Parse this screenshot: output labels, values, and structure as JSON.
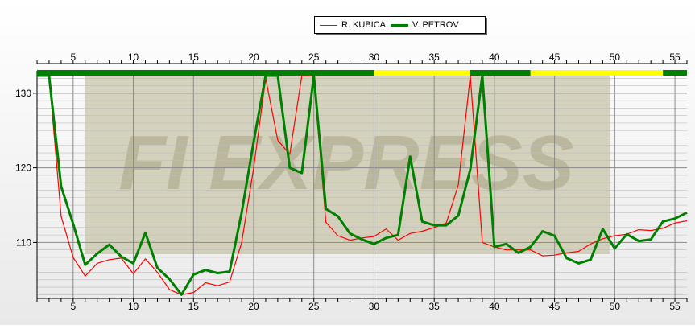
{
  "chart_data": {
    "type": "line",
    "title": "",
    "xlabel": "",
    "ylabel": "",
    "xlim": [
      2,
      56
    ],
    "ylim": [
      102.5,
      133
    ],
    "x_ticks": [
      5,
      10,
      15,
      20,
      25,
      30,
      35,
      40,
      45,
      50,
      55
    ],
    "y_ticks": [
      110,
      120,
      130
    ],
    "grid": true,
    "legend_position": "top-center",
    "series": [
      {
        "name": "R. KUBICA",
        "color": "#ff0000",
        "x": [
          2,
          3,
          4,
          5,
          6,
          7,
          8,
          9,
          10,
          11,
          12,
          13,
          14,
          15,
          16,
          17,
          18,
          19,
          20,
          21,
          22,
          23,
          24,
          25,
          26,
          27,
          28,
          29,
          30,
          31,
          32,
          33,
          34,
          35,
          36,
          37,
          38,
          39,
          40,
          41,
          42,
          43,
          44,
          45,
          46,
          47,
          48,
          49,
          50,
          51,
          52,
          53,
          54,
          55,
          56
        ],
        "values": [
          133,
          133,
          113.5,
          108,
          105.5,
          107.2,
          107.7,
          107.9,
          105.8,
          107.8,
          106,
          103.7,
          103,
          103.3,
          104.6,
          104.2,
          104.7,
          110,
          120,
          132,
          123.7,
          121.8,
          133,
          133,
          112.7,
          110.9,
          110.3,
          110.6,
          110.8,
          111.8,
          110.3,
          111.2,
          111.5,
          112,
          112.6,
          117.7,
          133,
          110,
          109.4,
          109,
          109,
          109,
          108.2,
          108.3,
          108.6,
          108.8,
          109.8,
          110.5,
          110.9,
          111.1,
          111.7,
          111.6,
          111.9,
          112.6,
          112.9
        ]
      },
      {
        "name": "V. PETROV",
        "color": "#008000",
        "x": [
          2,
          3,
          4,
          5,
          6,
          7,
          8,
          9,
          10,
          11,
          12,
          13,
          14,
          15,
          16,
          17,
          18,
          19,
          20,
          21,
          22,
          23,
          24,
          25,
          26,
          27,
          28,
          29,
          30,
          31,
          32,
          33,
          34,
          35,
          36,
          37,
          38,
          39,
          40,
          41,
          42,
          43,
          44,
          45,
          46,
          47,
          48,
          49,
          50,
          51,
          52,
          53,
          54,
          55,
          56
        ],
        "values": [
          133,
          133,
          117.5,
          112.5,
          107,
          108.5,
          109.7,
          108.1,
          107.2,
          111.3,
          106.6,
          105.1,
          103,
          105.7,
          106.3,
          105.9,
          106.1,
          114,
          123.5,
          133,
          133,
          120,
          119.3,
          133,
          114.5,
          113.5,
          111.2,
          110.4,
          109.8,
          110.6,
          111,
          121.5,
          112.8,
          112.3,
          112.3,
          113.6,
          119.8,
          133,
          109.4,
          109.8,
          108.6,
          109.4,
          111.5,
          110.9,
          107.9,
          107.2,
          107.7,
          111.8,
          109.2,
          111.1,
          110.2,
          110.4,
          112.8,
          113.2,
          114
        ]
      }
    ],
    "status_bar": [
      {
        "from": 2,
        "to": 30,
        "color": "#008000"
      },
      {
        "from": 30,
        "to": 38,
        "color": "#ffff00"
      },
      {
        "from": 38,
        "to": 43,
        "color": "#008000"
      },
      {
        "from": 43,
        "to": 54,
        "color": "#ffff00"
      },
      {
        "from": 54,
        "to": 56,
        "color": "#008000"
      }
    ],
    "watermark": {
      "text": "FI EXPRESS",
      "color": "#c8c4a8"
    }
  }
}
